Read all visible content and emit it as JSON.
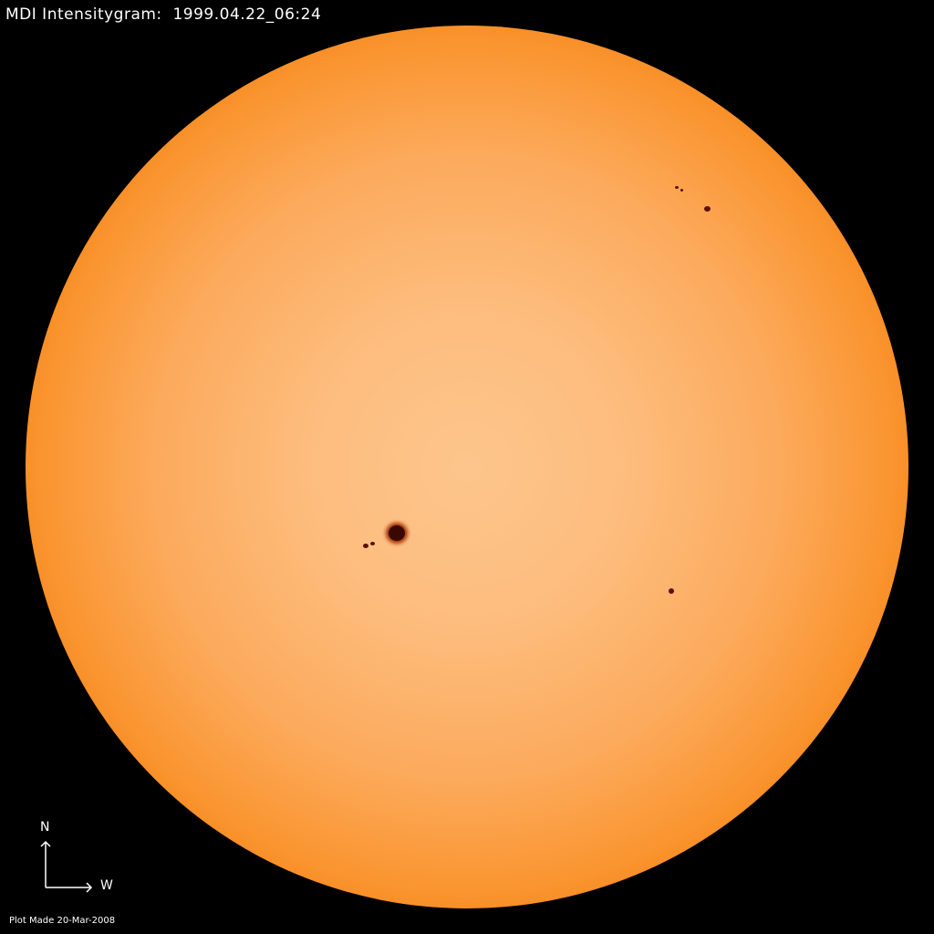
{
  "title": "MDI Intensitygram:  1999.04.22_06:24",
  "compass": {
    "north": "N",
    "west": "W"
  },
  "footer": "Plot Made 20-Mar-2008",
  "colors": {
    "background": "#000000",
    "disk_center": "#fdc58c",
    "limb": "#8a1a00",
    "sunspot": "#5a1000"
  }
}
